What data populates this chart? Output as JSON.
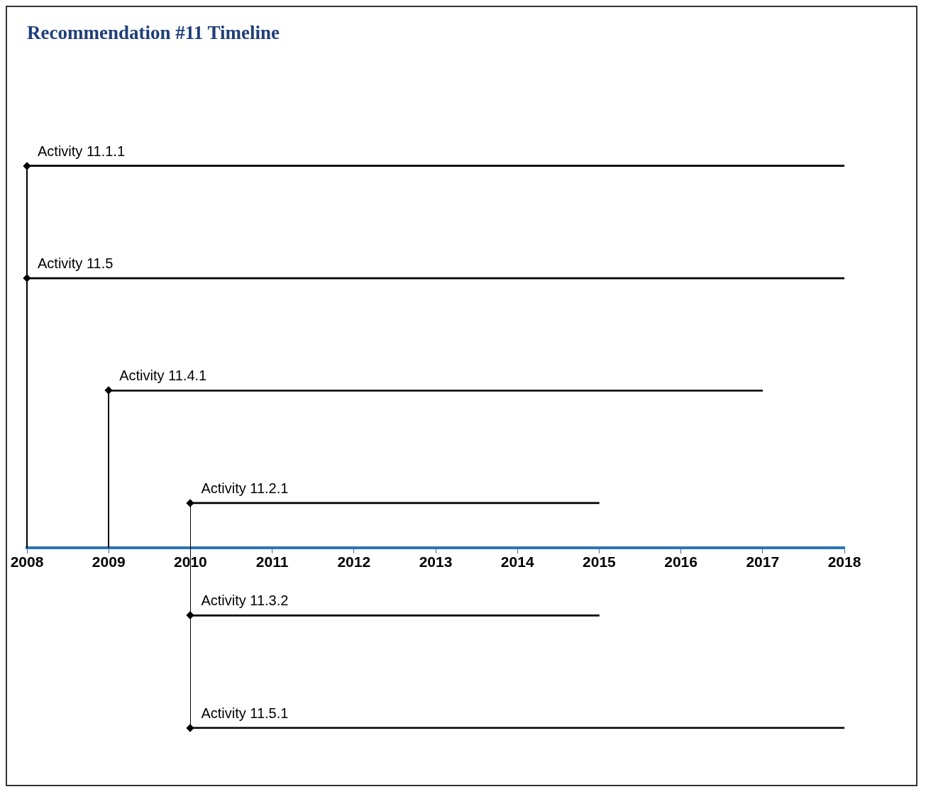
{
  "chart_data": {
    "type": "bar",
    "title": "Recommendation #11 Timeline",
    "orientation": "horizontal",
    "marker": "diamond",
    "grid": false,
    "categories": [
      "Activity 11.1.1",
      "Activity 11.5",
      "Activity 11.4.1",
      "Activity 11.2.1",
      "Activity 11.3.2",
      "Activity 11.5.1"
    ],
    "base": [
      2008,
      2008,
      2009,
      2010,
      2010,
      2010
    ],
    "values": [
      10,
      10,
      8,
      5,
      5,
      8
    ],
    "color": "#000000",
    "xlim": [
      2008,
      2018
    ],
    "xticks": [
      2008,
      2009,
      2010,
      2011,
      2012,
      2013,
      2014,
      2015,
      2016,
      2017,
      2018
    ]
  }
}
